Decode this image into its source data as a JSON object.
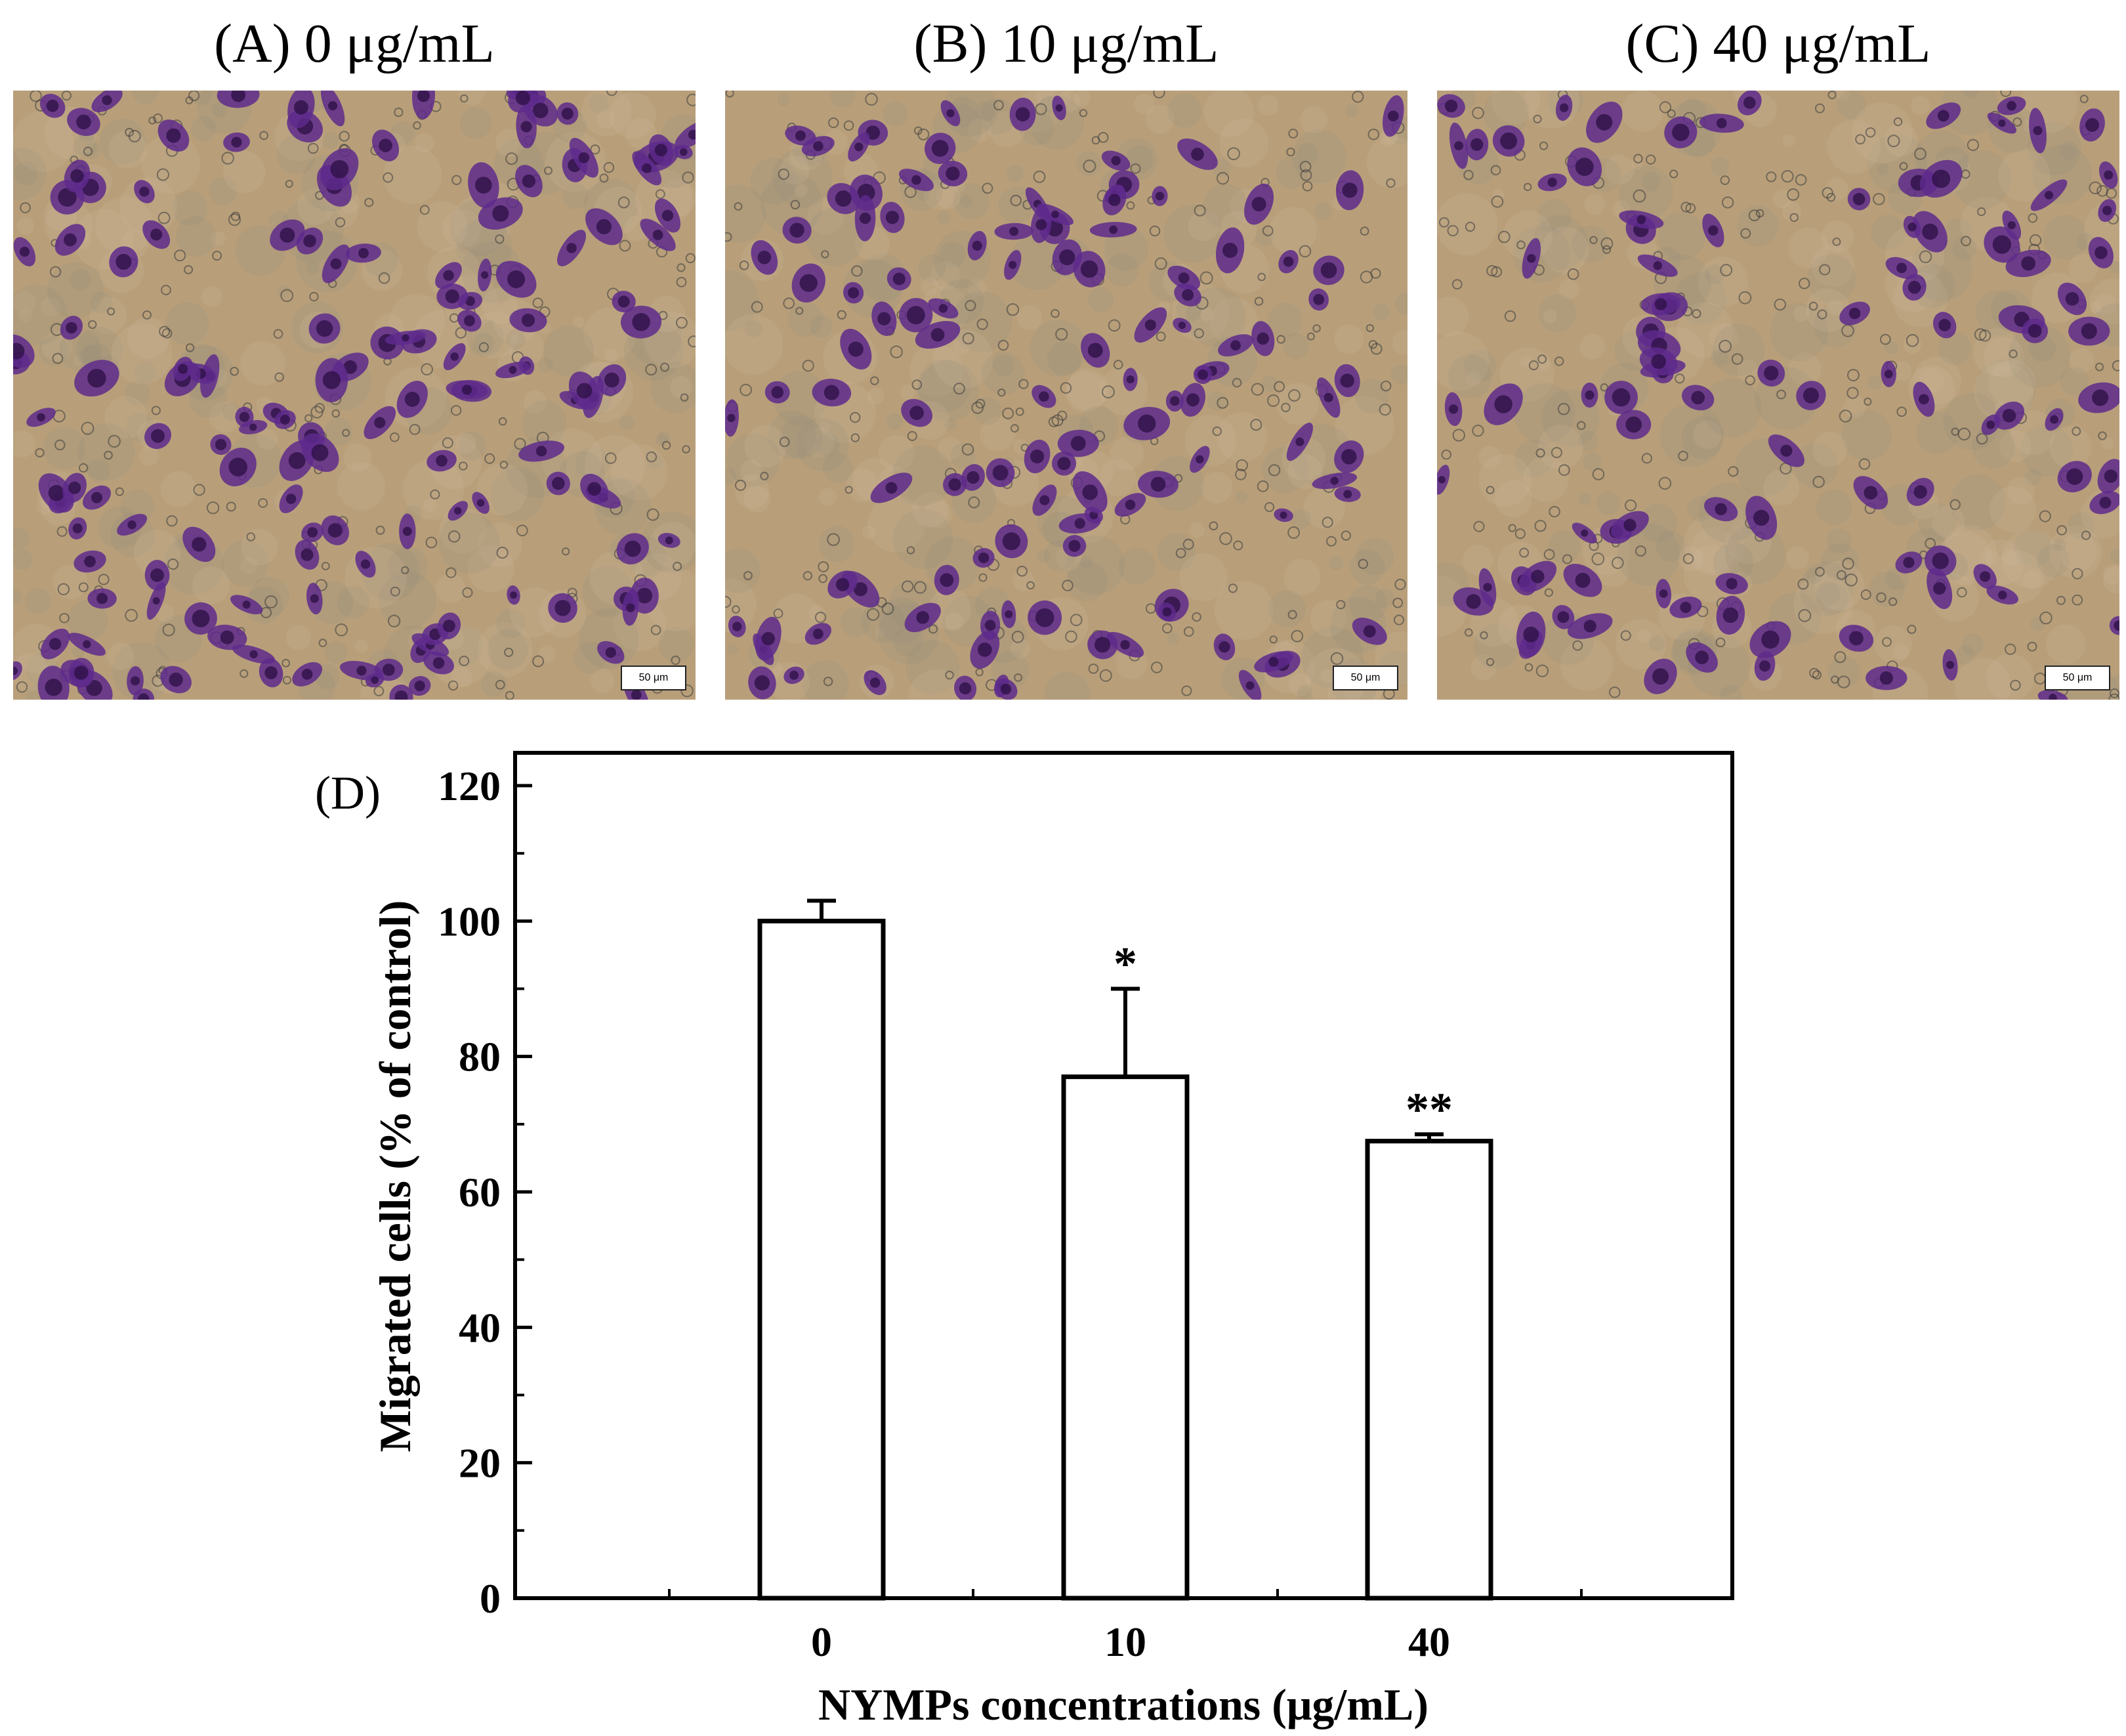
{
  "panels": [
    {
      "title": "(A) 0 μg/mL",
      "scale_label": "50 μm",
      "density": 1.0
    },
    {
      "title": "(B) 10 μg/mL",
      "scale_label": "50 μm",
      "density": 0.77
    },
    {
      "title": "(C) 40 μg/mL",
      "scale_label": "50 μm",
      "density": 0.67
    }
  ],
  "colors": {
    "micro_bg": "#b89f7a",
    "cell_purple": "#5e2a8c",
    "cell_dark": "#2f1247",
    "bar_fill": "#ffffff",
    "axis": "#000000"
  },
  "chart_data": {
    "type": "bar",
    "panel_label": "(D)",
    "categories": [
      "0",
      "10",
      "40"
    ],
    "values": [
      100,
      77,
      67.5
    ],
    "errors": [
      3,
      13,
      1
    ],
    "significance": [
      "",
      "*",
      "**"
    ],
    "xlabel": "NYMPs concentrations (μg/mL)",
    "ylabel": "Migrated cells (% of control)",
    "ylim": [
      0,
      120
    ],
    "yticks": [
      "0",
      "20",
      "40",
      "60",
      "80",
      "100",
      "120"
    ],
    "grid": false,
    "legend": "none"
  }
}
